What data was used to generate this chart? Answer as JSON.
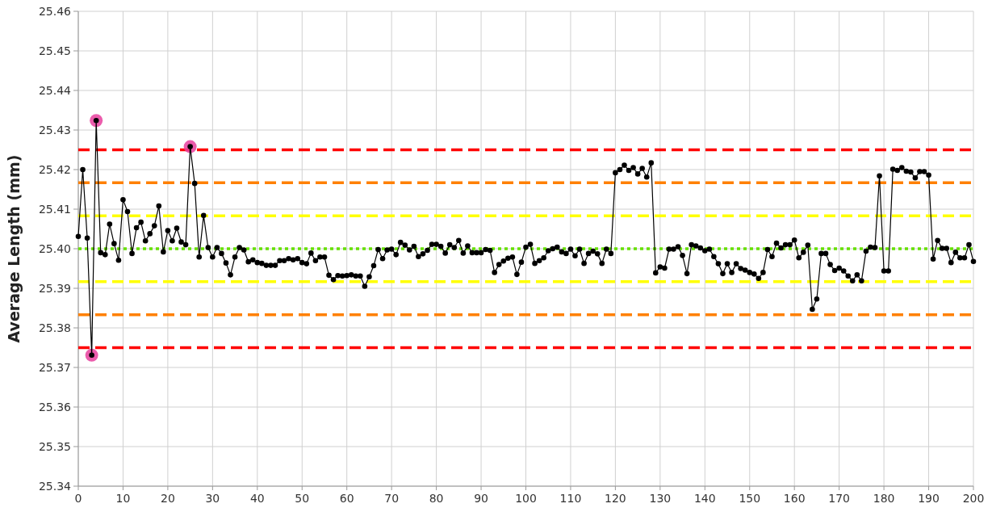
{
  "chart_data": {
    "type": "line",
    "ylabel": "Average Length (mm)",
    "xlim": [
      0,
      200
    ],
    "xticks": [
      0,
      10,
      20,
      30,
      40,
      50,
      60,
      70,
      80,
      90,
      100,
      110,
      120,
      130,
      140,
      150,
      160,
      170,
      180,
      190,
      200
    ],
    "ylim": [
      25.34,
      25.46
    ],
    "yticks": [
      25.34,
      25.35,
      25.36,
      25.37,
      25.38,
      25.39,
      {
        "value": 25.4,
        "label": "25.40"
      },
      25.41,
      25.42,
      25.43,
      25.44,
      25.45,
      25.46
    ],
    "grid": true,
    "marker": "circle",
    "line_style": "solid",
    "x": [
      0,
      1,
      2,
      3,
      4,
      5,
      6,
      7,
      8,
      9,
      10,
      11,
      12,
      13,
      14,
      15,
      16,
      17,
      18,
      19,
      20,
      21,
      22,
      23,
      24,
      25,
      26,
      27,
      28,
      29,
      30,
      31,
      32,
      33,
      34,
      35,
      36,
      37,
      38,
      39,
      40,
      41,
      42,
      43,
      44,
      45,
      46,
      47,
      48,
      49,
      50,
      51,
      52,
      53,
      54,
      55,
      56,
      57,
      58,
      59,
      60,
      61,
      62,
      63,
      64,
      65,
      66,
      67,
      68,
      69,
      70,
      71,
      72,
      73,
      74,
      75,
      76,
      77,
      78,
      79,
      80,
      81,
      82,
      83,
      84,
      85,
      86,
      87,
      88,
      89,
      90,
      91,
      92,
      93,
      94,
      95,
      96,
      97,
      98,
      99,
      100,
      101,
      102,
      103,
      104,
      105,
      106,
      107,
      108,
      109,
      110,
      111,
      112,
      113,
      114,
      115,
      116,
      117,
      118,
      119,
      120,
      121,
      122,
      123,
      124,
      125,
      126,
      127,
      128,
      129,
      130,
      131,
      132,
      133,
      134,
      135,
      136,
      137,
      138,
      139,
      140,
      141,
      142,
      143,
      144,
      145,
      146,
      147,
      148,
      149,
      150,
      151,
      152,
      153,
      154,
      155,
      156,
      157,
      158,
      159,
      160,
      161,
      162,
      163,
      164,
      165,
      166,
      167,
      168,
      169,
      170,
      171,
      172,
      173,
      174,
      175,
      176,
      177,
      178,
      179,
      180,
      181,
      182,
      183,
      184,
      185,
      186,
      187,
      188,
      189,
      190,
      191,
      192,
      193,
      194,
      195,
      196,
      197,
      198,
      199,
      200
    ],
    "series": [
      {
        "type": "scatter",
        "color": "#e8409e",
        "x": [
          3,
          4,
          25
        ],
        "values": [
          25.3731,
          25.4324,
          25.4258
        ]
      },
      {
        "color": "#000000",
        "values": [
          25.4031,
          25.42,
          25.4027,
          25.3731,
          25.4324,
          25.399,
          25.3985,
          25.4062,
          25.4013,
          25.3971,
          25.4124,
          25.4094,
          25.3988,
          25.4053,
          25.4067,
          25.402,
          25.4038,
          25.4058,
          25.4108,
          25.3992,
          25.4046,
          25.402,
          25.4052,
          25.4017,
          25.401,
          25.4258,
          25.4165,
          25.3979,
          25.4084,
          25.4003,
          25.3979,
          25.4003,
          25.3988,
          25.3964,
          25.3934,
          25.3979,
          25.4003,
          25.3997,
          25.3967,
          25.3972,
          25.3965,
          25.3963,
          25.3958,
          25.3958,
          25.3958,
          25.397,
          25.397,
          25.3975,
          25.3972,
          25.3975,
          25.3965,
          25.3962,
          25.3989,
          25.397,
          25.3979,
          25.3979,
          25.3933,
          25.3922,
          25.3932,
          25.3931,
          25.3932,
          25.3934,
          25.3931,
          25.3931,
          25.3905,
          25.3929,
          25.3957,
          25.3998,
          25.3975,
          25.3997,
          25.3999,
          25.3985,
          25.4016,
          25.4009,
          25.3997,
          25.4006,
          25.398,
          25.3987,
          25.3996,
          25.4011,
          25.4011,
          25.4006,
          25.3989,
          25.401,
          25.4003,
          25.4021,
          25.3989,
          25.4007,
          25.399,
          25.399,
          25.399,
          25.3998,
          25.3996,
          25.394,
          25.396,
          25.3969,
          25.3976,
          25.3979,
          25.3935,
          25.3966,
          25.4004,
          25.4011,
          25.3963,
          25.397,
          25.3977,
          25.3995,
          25.4,
          25.4004,
          25.3992,
          25.3988,
          25.3999,
          25.3982,
          25.3999,
          25.3963,
          25.3988,
          25.3994,
          25.3987,
          25.3963,
          25.3999,
          25.3988,
          25.4192,
          25.42,
          25.4211,
          25.4198,
          25.4205,
          25.4189,
          25.4203,
          25.4181,
          25.4217,
          25.3939,
          25.3954,
          25.3951,
          25.3999,
          25.3999,
          25.4005,
          25.3983,
          25.3937,
          25.401,
          25.4007,
          25.4002,
          25.3995,
          25.3999,
          25.398,
          25.3962,
          25.3937,
          25.3962,
          25.394,
          25.3962,
          25.395,
          25.3946,
          25.394,
          25.3936,
          25.3925,
          25.394,
          25.3998,
          25.398,
          25.4014,
          25.4002,
          25.401,
          25.401,
          25.4022,
          25.3977,
          25.3991,
          25.4009,
          25.3847,
          25.3873,
          25.3988,
          25.3988,
          25.396,
          25.3945,
          25.3951,
          25.3944,
          25.3931,
          25.3919,
          25.3934,
          25.3919,
          25.3994,
          25.4004,
          25.4003,
          25.4184,
          25.3944,
          25.3944,
          25.4201,
          25.4198,
          25.4205,
          25.4196,
          25.4194,
          25.4179,
          25.4195,
          25.4195,
          25.4186,
          25.3974,
          25.4021,
          25.4001,
          25.4001,
          25.3965,
          25.3991,
          25.3977,
          25.3977,
          25.401,
          25.3968
        ]
      }
    ],
    "ref_lines": [
      {
        "axis": "y",
        "value": 25.425,
        "color": "#ff0000",
        "line_style": "dashed"
      },
      {
        "axis": "y",
        "value": 25.4167,
        "color": "#ff8000",
        "line_style": "dashed"
      },
      {
        "axis": "y",
        "value": 25.4083,
        "color": "#ffff00",
        "line_style": "dashed"
      },
      {
        "axis": "y",
        "value": 25.4,
        "color": "#66e000",
        "line_style": "dotted"
      },
      {
        "axis": "y",
        "value": 25.3917,
        "color": "#ffff00",
        "line_style": "dashed"
      },
      {
        "axis": "y",
        "value": 25.3833,
        "color": "#ff8000",
        "line_style": "dashed"
      },
      {
        "axis": "y",
        "value": 25.375,
        "color": "#ff0000",
        "line_style": "dashed"
      }
    ]
  }
}
